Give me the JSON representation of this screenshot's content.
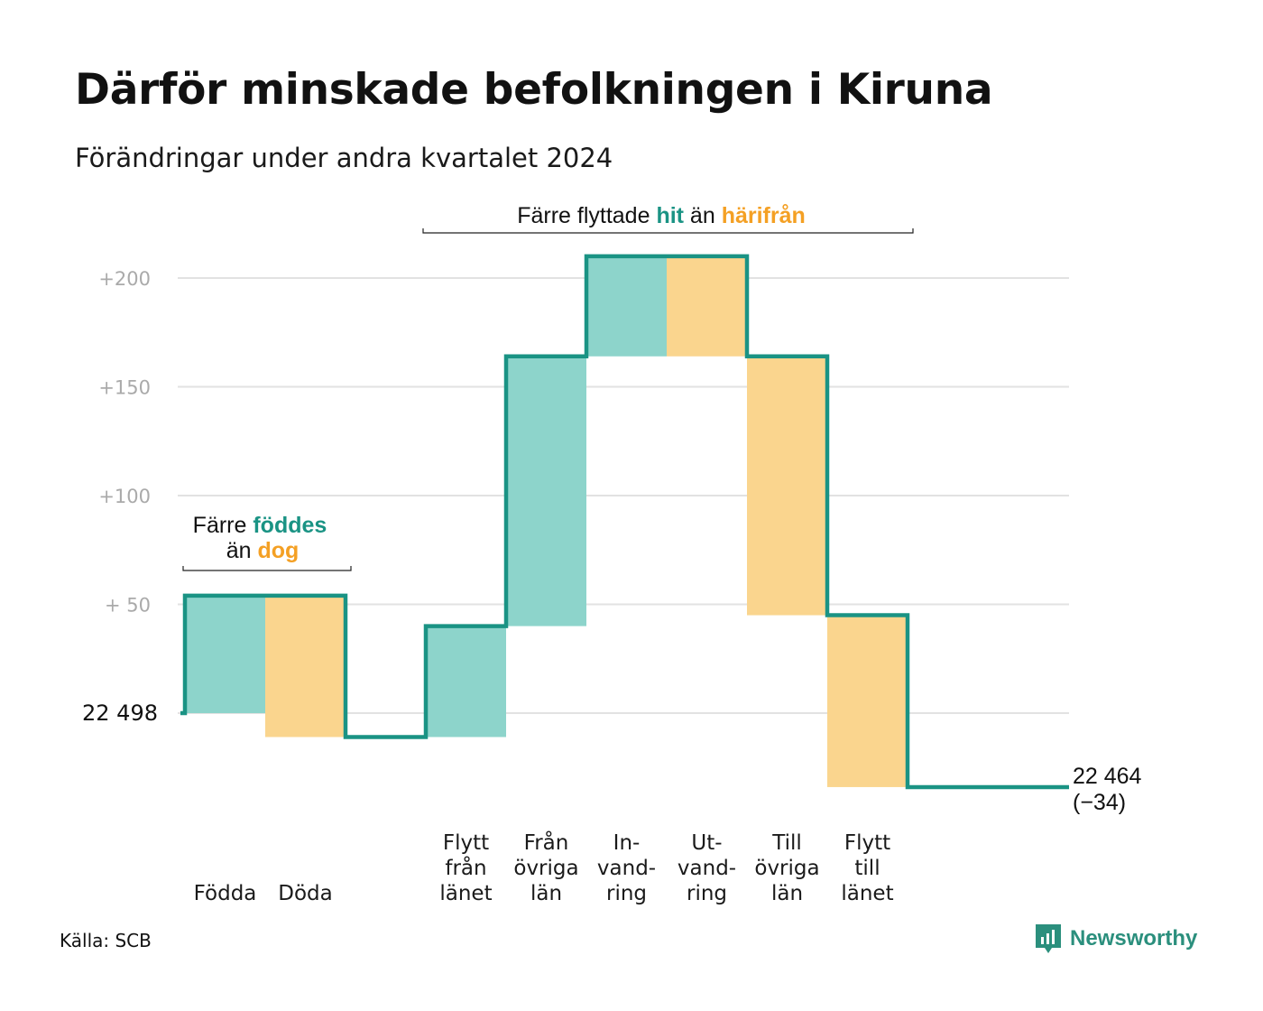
{
  "title": "Därför minskade befolkningen i Kiruna",
  "subtitle": "Förändringar under andra kvartalet 2024",
  "source": "Källa: SCB",
  "brand": "Newsworthy",
  "colors": {
    "teal": "#1a9384",
    "teal_fill": "#8dd4cb",
    "orange_fill": "#fad58e",
    "orange_text": "#f4a024",
    "grid": "#e2e2e2"
  },
  "annotations": {
    "births": {
      "line1_a": "Färre ",
      "line1_b": "föddes",
      "line2_a": "än ",
      "line2_b": "dog"
    },
    "moves": {
      "a": "Färre flyttade ",
      "b": "hit",
      "c": " än ",
      "d": "härifrån"
    }
  },
  "start_label": "22  498",
  "end_label": {
    "line1": "22 464",
    "line2": "(−34)"
  },
  "chart_data": {
    "type": "waterfall",
    "title": "Därför minskade befolkningen i Kiruna",
    "subtitle": "Förändringar under andra kvartalet 2024",
    "start_value": 22498,
    "end_value": 22464,
    "net_change": -34,
    "y_ticks": [
      {
        "value": 200,
        "label": "+200"
      },
      {
        "value": 150,
        "label": "+150"
      },
      {
        "value": 100,
        "label": "+100"
      },
      {
        "value": 50,
        "label": "+  50"
      }
    ],
    "ylim": [
      -35,
      212
    ],
    "steps": [
      {
        "label": "Födda",
        "lines": [
          "Födda"
        ],
        "kind": "in",
        "value": 54
      },
      {
        "label": "Döda",
        "lines": [
          "Döda"
        ],
        "kind": "out",
        "value": 65
      },
      {
        "label": "",
        "lines": [],
        "kind": "gap",
        "value": 0
      },
      {
        "label": "Flytt från länet",
        "lines": [
          "Flytt",
          "från",
          "länet"
        ],
        "kind": "in",
        "value": 51
      },
      {
        "label": "Från övriga län",
        "lines": [
          "Från",
          "övriga",
          "län"
        ],
        "kind": "in",
        "value": 124
      },
      {
        "label": "In-vand-ring",
        "lines": [
          "In-",
          "vand-",
          "ring"
        ],
        "kind": "in",
        "value": 46
      },
      {
        "label": "Ut-vand-ring",
        "lines": [
          "Ut-",
          "vand-",
          "ring"
        ],
        "kind": "out",
        "value": 46
      },
      {
        "label": "Till övriga län",
        "lines": [
          "Till",
          "övriga",
          "län"
        ],
        "kind": "out",
        "value": 119
      },
      {
        "label": "Flytt till länet",
        "lines": [
          "Flytt",
          "till",
          "länet"
        ],
        "kind": "out",
        "value": 79
      }
    ]
  }
}
